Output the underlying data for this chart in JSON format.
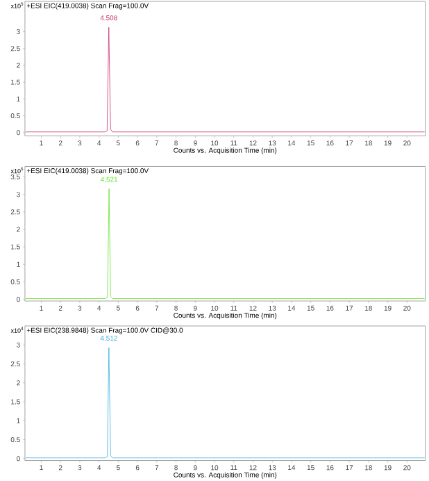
{
  "chart_data": [
    {
      "type": "line",
      "title": "+ESI EIC(419.0038) Scan Frag=100.0V",
      "xlabel": "Counts vs. Acquisition Time (min)",
      "xlim": [
        0.15,
        20.95
      ],
      "ylim": [
        -0.1,
        3.9
      ],
      "xticks": [
        1,
        2,
        3,
        4,
        5,
        6,
        7,
        8,
        9,
        10,
        11,
        12,
        13,
        14,
        15,
        16,
        17,
        18,
        19,
        20
      ],
      "yticks": [
        0,
        0.5,
        1,
        1.5,
        2,
        2.5,
        3
      ],
      "series": [
        {
          "color": "#c8306e",
          "x": [
            0.2,
            4.3,
            4.42,
            4.508,
            4.6,
            4.7,
            20.9
          ],
          "values": [
            0.02,
            0.02,
            0.05,
            3.13,
            0.1,
            0.02,
            0.02
          ]
        }
      ],
      "annotations": [
        "x10$^{5}$",
        {
          "text": "4.508",
          "x": 4.508,
          "y": 3.13
        }
      ]
    },
    {
      "type": "line",
      "title": "+ESI EIC(419.0038) Scan Frag=100.0V",
      "xlabel": "Counts vs. Acquisition Time (min)",
      "xlim": [
        0.15,
        20.95
      ],
      "ylim": [
        -0.05,
        3.8
      ],
      "xticks": [
        1,
        2,
        3,
        4,
        5,
        6,
        7,
        8,
        9,
        10,
        11,
        12,
        13,
        14,
        15,
        16,
        17,
        18,
        19,
        20
      ],
      "yticks": [
        0,
        0.5,
        1,
        1.5,
        2,
        2.5,
        3,
        3.5
      ],
      "series": [
        {
          "color": "#66e030",
          "x": [
            0.2,
            4.3,
            4.44,
            4.521,
            4.6,
            4.7,
            20.9
          ],
          "values": [
            0.02,
            0.02,
            0.05,
            3.16,
            0.08,
            0.02,
            0.02
          ]
        }
      ],
      "annotations": [
        "x10$^{5}$",
        {
          "text": "4.521",
          "x": 4.521,
          "y": 3.16
        }
      ]
    },
    {
      "type": "line",
      "title": "+ESI EIC(238.9848) Scan Frag=100.0V CID@30.0",
      "xlabel": "Counts vs. Acquisition Time (min)",
      "xlim": [
        0.15,
        20.95
      ],
      "ylim": [
        -0.05,
        3.5
      ],
      "xticks": [
        1,
        2,
        3,
        4,
        5,
        6,
        7,
        8,
        9,
        10,
        11,
        12,
        13,
        14,
        15,
        16,
        17,
        18,
        19,
        20
      ],
      "yticks": [
        0,
        0.5,
        1,
        1.5,
        2,
        2.5,
        3
      ],
      "series": [
        {
          "color": "#3aaee0",
          "x": [
            0.2,
            4.3,
            4.43,
            4.512,
            4.6,
            4.7,
            20.9
          ],
          "values": [
            0.02,
            0.02,
            0.05,
            2.93,
            0.08,
            0.02,
            0.02
          ]
        }
      ],
      "annotations": [
        "x10$^{4}$",
        {
          "text": "4.512",
          "x": 4.512,
          "y": 2.93
        }
      ]
    }
  ]
}
